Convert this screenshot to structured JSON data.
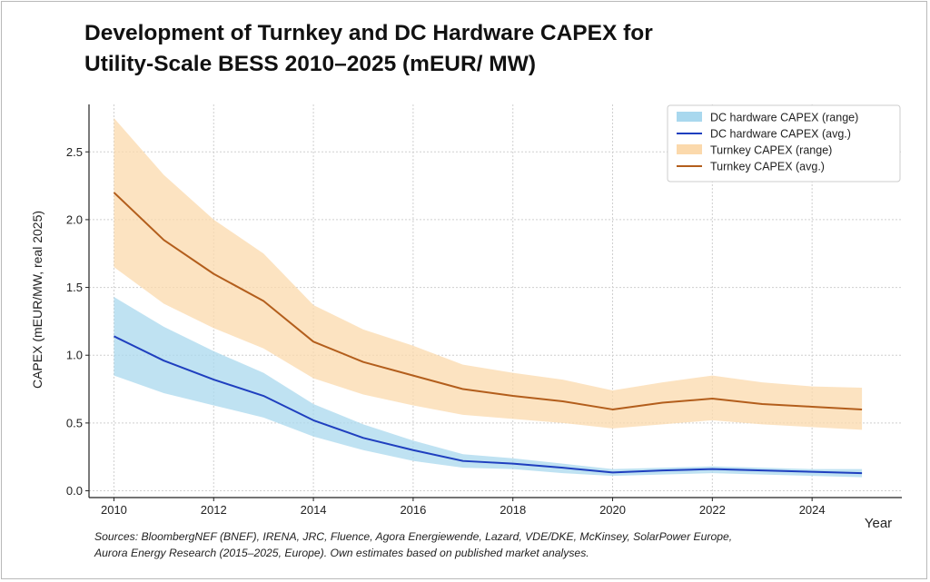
{
  "title_lines": [
    "Development of Turnkey and DC Hardware CAPEX for",
    "Utility-Scale BESS 2010–2025 (mEUR/ MW)"
  ],
  "source_lines": [
    "Sources: BloombergNEF (BNEF), IRENA, JRC, Fluence, Agora Energiewende, Lazard, VDE/DKE, McKinsey, SolarPower Europe,",
    "Aurora Energy Research (2015–2025, Europe). Own estimates based on published market analyses."
  ],
  "chart_data": {
    "type": "line",
    "xlabel": "Year",
    "ylabel": "CAPEX (mEUR/MW, real 2025)",
    "xlim": [
      2009.5,
      2025.8
    ],
    "ylim": [
      -0.05,
      2.85
    ],
    "x_ticks": [
      2010,
      2012,
      2014,
      2016,
      2018,
      2020,
      2022,
      2024
    ],
    "y_ticks": [
      0.0,
      0.5,
      1.0,
      1.5,
      2.0,
      2.5
    ],
    "grid": true,
    "legend_position": "top-right",
    "x": [
      2010,
      2011,
      2012,
      2013,
      2014,
      2015,
      2016,
      2017,
      2018,
      2019,
      2020,
      2021,
      2022,
      2023,
      2024,
      2025
    ],
    "series": [
      {
        "name": "DC hardware CAPEX (range)",
        "kind": "band",
        "color": "#a9d8ee",
        "lower": [
          0.85,
          0.72,
          0.63,
          0.54,
          0.4,
          0.3,
          0.22,
          0.17,
          0.16,
          0.13,
          0.11,
          0.12,
          0.13,
          0.12,
          0.11,
          0.1
        ],
        "upper": [
          1.43,
          1.21,
          1.03,
          0.87,
          0.64,
          0.49,
          0.37,
          0.27,
          0.24,
          0.2,
          0.16,
          0.17,
          0.18,
          0.17,
          0.16,
          0.16
        ]
      },
      {
        "name": "DC hardware CAPEX (avg.)",
        "kind": "line",
        "color": "#1f3fbf",
        "values": [
          1.14,
          0.96,
          0.82,
          0.7,
          0.52,
          0.39,
          0.3,
          0.22,
          0.2,
          0.17,
          0.135,
          0.15,
          0.16,
          0.15,
          0.14,
          0.13
        ]
      },
      {
        "name": "Turnkey CAPEX (range)",
        "kind": "band",
        "color": "#fbd9ac",
        "lower": [
          1.65,
          1.38,
          1.2,
          1.05,
          0.83,
          0.71,
          0.63,
          0.56,
          0.53,
          0.5,
          0.46,
          0.49,
          0.52,
          0.49,
          0.47,
          0.45
        ],
        "upper": [
          2.75,
          2.33,
          2.0,
          1.75,
          1.37,
          1.19,
          1.07,
          0.93,
          0.87,
          0.82,
          0.74,
          0.8,
          0.85,
          0.8,
          0.77,
          0.76
        ]
      },
      {
        "name": "Turnkey CAPEX (avg.)",
        "kind": "line",
        "color": "#b35e1c",
        "values": [
          2.2,
          1.85,
          1.6,
          1.4,
          1.1,
          0.95,
          0.85,
          0.75,
          0.7,
          0.66,
          0.6,
          0.65,
          0.68,
          0.64,
          0.62,
          0.6
        ]
      }
    ]
  }
}
